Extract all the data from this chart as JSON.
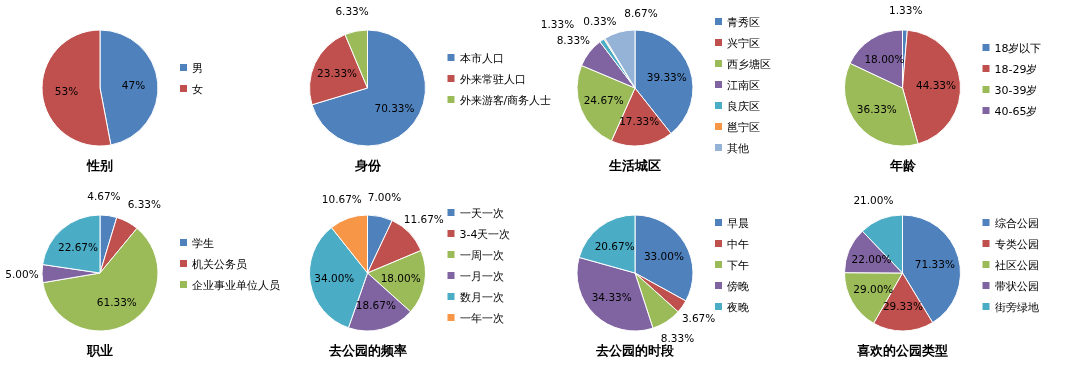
{
  "chart_data": [
    {
      "type": "pie",
      "title": "性别",
      "categories": [
        "男",
        "女"
      ],
      "values": [
        47,
        53
      ],
      "colors": [
        "#4f81bd",
        "#c0504d"
      ],
      "value_labels": [
        "47%",
        "53%"
      ],
      "legend": "right"
    },
    {
      "type": "pie",
      "title": "身份",
      "categories": [
        "本市人口",
        "外来常驻人口",
        "外来游客/商务人士"
      ],
      "values": [
        70.33,
        23.33,
        6.33
      ],
      "colors": [
        "#4f81bd",
        "#c0504d",
        "#9bbb59"
      ],
      "value_labels": [
        "70.33%",
        "23.33%",
        "6.33%"
      ],
      "legend": "right"
    },
    {
      "type": "pie",
      "title": "生活城区",
      "categories": [
        "青秀区",
        "兴宁区",
        "西乡塘区",
        "江南区",
        "良庆区",
        "邕宁区",
        "其他"
      ],
      "values": [
        39.33,
        17.33,
        24.67,
        8.33,
        1.33,
        0.33,
        8.67
      ],
      "colors": [
        "#4f81bd",
        "#c0504d",
        "#9bbb59",
        "#8064a2",
        "#4bacc6",
        "#f79646",
        "#95b3d7"
      ],
      "value_labels": [
        "39.33%",
        "17.33%",
        "24.67%",
        "8.33%",
        "1.33%",
        "0.33%",
        "8.67%"
      ],
      "legend": "right"
    },
    {
      "type": "pie",
      "title": "年龄",
      "categories": [
        "18岁以下",
        "18-29岁",
        "30-39岁",
        "40-65岁"
      ],
      "values": [
        1.33,
        44.33,
        36.33,
        18.0
      ],
      "colors": [
        "#4f81bd",
        "#c0504d",
        "#9bbb59",
        "#8064a2"
      ],
      "value_labels": [
        "1.33%",
        "44.33%",
        "36.33%",
        "18.00%"
      ],
      "legend": "right"
    },
    {
      "type": "pie",
      "title": "职业",
      "categories": [
        "学生",
        "机关公务员",
        "企业事业单位人员",
        null,
        null
      ],
      "values": [
        4.67,
        6.33,
        61.33,
        5.0,
        22.67
      ],
      "colors": [
        "#4f81bd",
        "#c0504d",
        "#9bbb59",
        "#8064a2",
        "#4bacc6"
      ],
      "value_labels": [
        "4.67%",
        "6.33%",
        "61.33%",
        "5.00%",
        "22.67%"
      ],
      "legend": "right"
    },
    {
      "type": "pie",
      "title": "去公园的频率",
      "categories": [
        "一天一次",
        "3-4天一次",
        "一周一次",
        "一月一次",
        "数月一次",
        "一年一次"
      ],
      "values": [
        7.0,
        11.67,
        18.0,
        18.67,
        34.0,
        10.67
      ],
      "colors": [
        "#4f81bd",
        "#c0504d",
        "#9bbb59",
        "#8064a2",
        "#4bacc6",
        "#f79646"
      ],
      "value_labels": [
        "7.00%",
        "11.67%",
        "18.00%",
        "18.67%",
        "34.00%",
        "10.67%"
      ],
      "legend": "right"
    },
    {
      "type": "pie",
      "title": "去公园的时段",
      "categories": [
        "早晨",
        "中午",
        "下午",
        "傍晚",
        "夜晚"
      ],
      "values": [
        33.0,
        3.67,
        8.33,
        34.33,
        20.67
      ],
      "colors": [
        "#4f81bd",
        "#c0504d",
        "#9bbb59",
        "#8064a2",
        "#4bacc6"
      ],
      "value_labels": [
        "33.00%",
        "3.67%",
        "8.33%",
        "34.33%",
        "20.67%"
      ],
      "legend": "right"
    },
    {
      "type": "pie",
      "title": "喜欢的公园类型",
      "categories": [
        "综合公园",
        "专类公园",
        "社区公园",
        "带状公园",
        "街旁绿地"
      ],
      "values": [
        71.33,
        29.33,
        29.0,
        22.0,
        21.0
      ],
      "colors": [
        "#4f81bd",
        "#c0504d",
        "#9bbb59",
        "#8064a2",
        "#4bacc6"
      ],
      "value_labels": [
        "71.33%",
        "29.33%",
        "29.00%",
        "22.00%",
        "21.00%"
      ],
      "legend": "right"
    }
  ]
}
